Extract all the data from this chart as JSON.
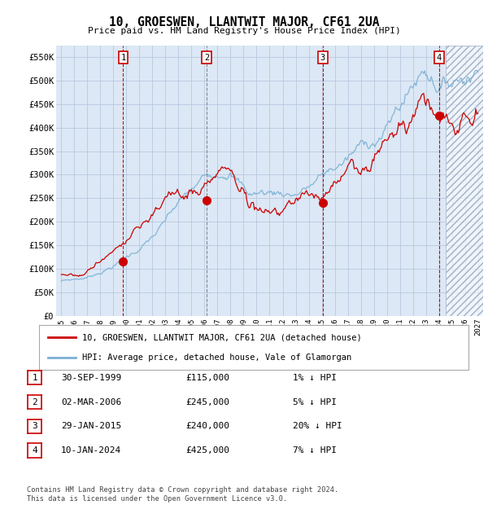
{
  "title": "10, GROESWEN, LLANTWIT MAJOR, CF61 2UA",
  "subtitle": "Price paid vs. HM Land Registry's House Price Index (HPI)",
  "background_color": "#ffffff",
  "plot_bg_color": "#dce8f5",
  "grid_color": "#b8c8e0",
  "red_line_color": "#cc0000",
  "blue_line_color": "#7ab0d4",
  "ylim": [
    0,
    575000
  ],
  "yticks": [
    0,
    50000,
    100000,
    150000,
    200000,
    250000,
    300000,
    350000,
    400000,
    450000,
    500000,
    550000
  ],
  "ytick_labels": [
    "£0",
    "£50K",
    "£100K",
    "£150K",
    "£200K",
    "£250K",
    "£300K",
    "£350K",
    "£400K",
    "£450K",
    "£500K",
    "£550K"
  ],
  "xlim_start": 1994.6,
  "xlim_end": 2027.4,
  "xtick_years": [
    1995,
    1996,
    1997,
    1998,
    1999,
    2000,
    2001,
    2002,
    2003,
    2004,
    2005,
    2006,
    2007,
    2008,
    2009,
    2010,
    2011,
    2012,
    2013,
    2014,
    2015,
    2016,
    2017,
    2018,
    2019,
    2020,
    2021,
    2022,
    2023,
    2024,
    2025,
    2026,
    2027
  ],
  "legend_red_label": "10, GROESWEN, LLANTWIT MAJOR, CF61 2UA (detached house)",
  "legend_blue_label": "HPI: Average price, detached house, Vale of Glamorgan",
  "sale_points": [
    {
      "num": 1,
      "year": 1999.75,
      "price": 115000,
      "line_style": "dashed_red"
    },
    {
      "num": 2,
      "year": 2006.17,
      "price": 245000,
      "line_style": "dashed_gray"
    },
    {
      "num": 3,
      "year": 2015.08,
      "price": 240000,
      "line_style": "dashed_red"
    },
    {
      "num": 4,
      "year": 2024.03,
      "price": 425000,
      "line_style": "dashed_red"
    }
  ],
  "table_rows": [
    {
      "num": 1,
      "date": "30-SEP-1999",
      "price": "£115,000",
      "info": "1% ↓ HPI"
    },
    {
      "num": 2,
      "date": "02-MAR-2006",
      "price": "£245,000",
      "info": "5% ↓ HPI"
    },
    {
      "num": 3,
      "date": "29-JAN-2015",
      "price": "£240,000",
      "info": "20% ↓ HPI"
    },
    {
      "num": 4,
      "date": "10-JAN-2024",
      "price": "£425,000",
      "info": "7% ↓ HPI"
    }
  ],
  "footer_text": "Contains HM Land Registry data © Crown copyright and database right 2024.\nThis data is licensed under the Open Government Licence v3.0.",
  "hpi_hatch_start": 2024.5,
  "hpi_hatch_end": 2027.4
}
